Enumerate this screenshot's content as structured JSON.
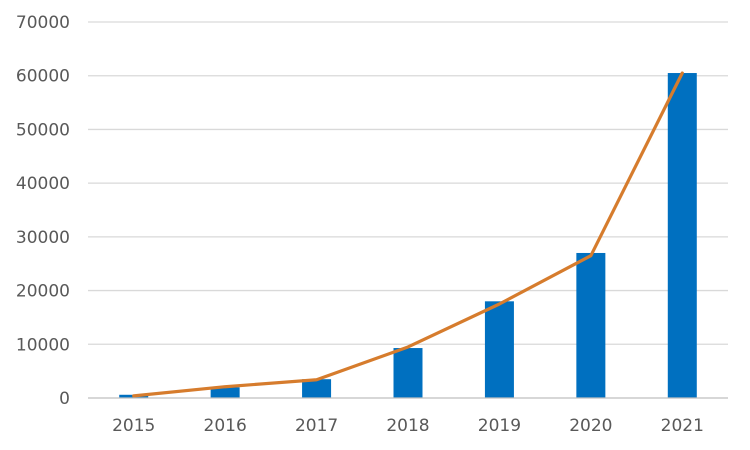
{
  "chart_data": {
    "type": "bar",
    "categories": [
      "2015",
      "2016",
      "2017",
      "2018",
      "2019",
      "2020",
      "2021"
    ],
    "series": [
      {
        "type": "bar",
        "values": [
          600,
          2000,
          3500,
          9300,
          18000,
          27000,
          60500
        ]
      },
      {
        "type": "line",
        "values": [
          400,
          2100,
          3400,
          9500,
          17500,
          26500,
          60500
        ]
      }
    ],
    "ylim": [
      0,
      70000
    ],
    "yticks": [
      0,
      10000,
      20000,
      30000,
      40000,
      50000,
      60000,
      70000
    ],
    "grid": true,
    "legend": "none",
    "colors": {
      "bar": "#0070C0",
      "line": "#D67C2D",
      "grid": "#D9D9D9",
      "axis": "#BFBFBF",
      "text": "#595959"
    }
  }
}
